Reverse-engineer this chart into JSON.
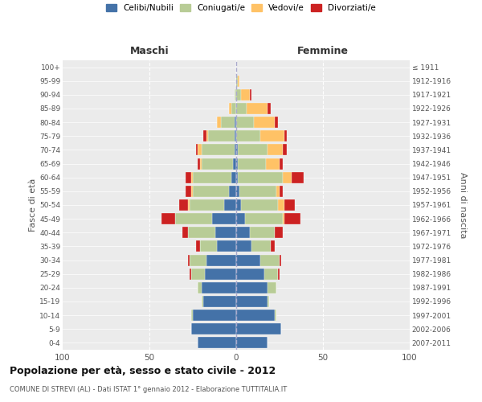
{
  "age_groups": [
    "0-4",
    "5-9",
    "10-14",
    "15-19",
    "20-24",
    "25-29",
    "30-34",
    "35-39",
    "40-44",
    "45-49",
    "50-54",
    "55-59",
    "60-64",
    "65-69",
    "70-74",
    "75-79",
    "80-84",
    "85-89",
    "90-94",
    "95-99",
    "100+"
  ],
  "birth_years": [
    "2007-2011",
    "2002-2006",
    "1997-2001",
    "1992-1996",
    "1987-1991",
    "1982-1986",
    "1977-1981",
    "1972-1976",
    "1967-1971",
    "1962-1966",
    "1957-1961",
    "1952-1956",
    "1947-1951",
    "1942-1946",
    "1937-1941",
    "1932-1936",
    "1927-1931",
    "1922-1926",
    "1917-1921",
    "1912-1916",
    "≤ 1911"
  ],
  "males": {
    "celibi": [
      22,
      26,
      25,
      19,
      20,
      18,
      17,
      11,
      12,
      14,
      7,
      4,
      3,
      2,
      1,
      1,
      1,
      0,
      0,
      0,
      0
    ],
    "coniugati": [
      0,
      0,
      1,
      1,
      2,
      8,
      10,
      10,
      16,
      21,
      20,
      21,
      22,
      18,
      19,
      15,
      8,
      3,
      1,
      0,
      0
    ],
    "vedovi": [
      0,
      0,
      0,
      0,
      0,
      0,
      0,
      0,
      0,
      0,
      1,
      1,
      1,
      1,
      2,
      1,
      2,
      1,
      0,
      0,
      0
    ],
    "divorziati": [
      0,
      0,
      0,
      0,
      0,
      1,
      1,
      2,
      3,
      8,
      5,
      3,
      3,
      1,
      1,
      2,
      0,
      0,
      0,
      0,
      0
    ]
  },
  "females": {
    "nubili": [
      18,
      26,
      22,
      18,
      18,
      16,
      14,
      9,
      8,
      5,
      3,
      2,
      1,
      1,
      1,
      0,
      0,
      0,
      0,
      0,
      0
    ],
    "coniugate": [
      0,
      0,
      1,
      1,
      5,
      8,
      11,
      11,
      14,
      22,
      21,
      21,
      26,
      16,
      17,
      14,
      10,
      6,
      3,
      1,
      0
    ],
    "vedove": [
      0,
      0,
      0,
      0,
      0,
      0,
      0,
      0,
      0,
      1,
      4,
      2,
      5,
      8,
      9,
      14,
      12,
      12,
      5,
      1,
      0
    ],
    "divorziate": [
      0,
      0,
      0,
      0,
      0,
      1,
      1,
      2,
      5,
      9,
      6,
      2,
      7,
      2,
      2,
      1,
      2,
      2,
      1,
      0,
      0
    ]
  },
  "colors": {
    "celibi_nubili": "#4472a8",
    "coniugati": "#b8cc96",
    "vedovi": "#ffc266",
    "divorziati": "#cc2222"
  },
  "title": "Popolazione per età, sesso e stato civile - 2012",
  "subtitle": "COMUNE DI STREVI (AL) - Dati ISTAT 1° gennaio 2012 - Elaborazione TUTTITALIA.IT",
  "ylabel_left": "Fasce di età",
  "ylabel_right": "Anni di nascita",
  "xlabel_left": "Maschi",
  "xlabel_right": "Femmine",
  "xlim": 100,
  "background_color": "#ffffff",
  "plot_bg_color": "#ebebeb",
  "grid_color": "#ffffff",
  "legend_labels": [
    "Celibi/Nubili",
    "Coniugati/e",
    "Vedovi/e",
    "Divorziati/e"
  ]
}
